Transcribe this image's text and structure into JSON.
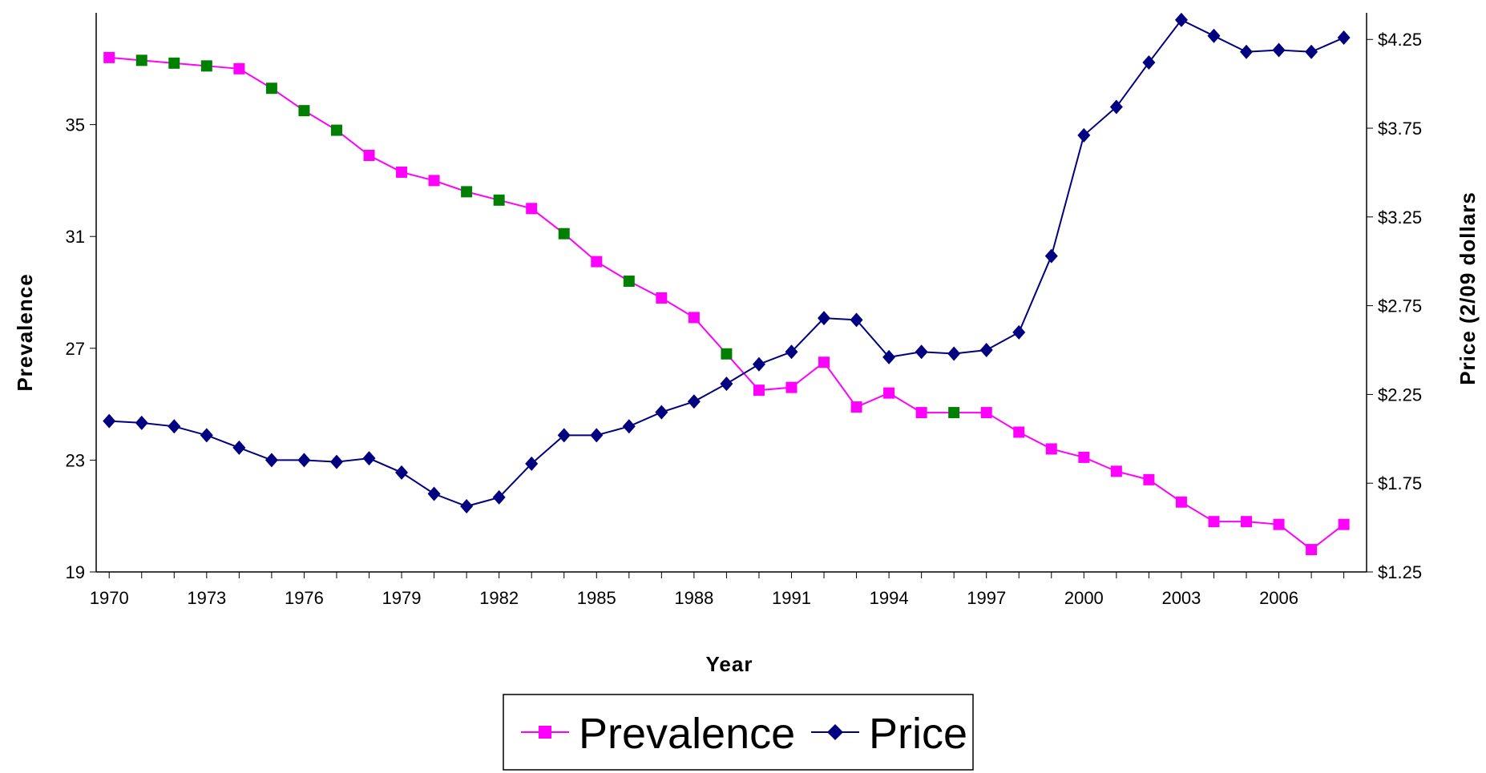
{
  "chart_data": {
    "type": "line",
    "x": [
      1970,
      1971,
      1972,
      1973,
      1974,
      1975,
      1976,
      1977,
      1978,
      1979,
      1980,
      1981,
      1982,
      1983,
      1984,
      1985,
      1986,
      1987,
      1988,
      1989,
      1990,
      1991,
      1992,
      1993,
      1994,
      1995,
      1996,
      1997,
      1998,
      1999,
      2000,
      2001,
      2002,
      2003,
      2004,
      2005,
      2006,
      2007,
      2008
    ],
    "x_tick_labels": [
      "1970",
      "1973",
      "1976",
      "1979",
      "1982",
      "1985",
      "1988",
      "1991",
      "1994",
      "1997",
      "2000",
      "2003",
      "2006"
    ],
    "x_ticks": [
      1970,
      1973,
      1976,
      1979,
      1982,
      1985,
      1988,
      1991,
      1994,
      1997,
      2000,
      2003,
      2006
    ],
    "xlabel": "Year",
    "ylabel_left": "Prevalence",
    "ylabel_right": "Price (2/09 dollars",
    "ylim_left": [
      19,
      39
    ],
    "yticks_left": [
      19,
      23,
      27,
      31,
      35
    ],
    "ytick_labels_left": [
      "19",
      "23",
      "27",
      "31",
      "35"
    ],
    "ylim_right": [
      1.25,
      4.4
    ],
    "yticks_right": [
      1.25,
      1.75,
      2.25,
      2.75,
      3.25,
      3.75,
      4.25
    ],
    "ytick_labels_right": [
      "$1.25",
      "$1.75",
      "$2.25",
      "$2.75",
      "$3.25",
      "$3.75",
      "$4.25"
    ],
    "grid": false,
    "legend_position": "bottom-center",
    "series": [
      {
        "name": "Prevalence",
        "axis": "left",
        "color": "#ff00ff",
        "highlight_color": "#008000",
        "marker": "square",
        "values": [
          37.4,
          37.3,
          37.2,
          37.1,
          37.0,
          36.3,
          35.5,
          34.8,
          33.9,
          33.3,
          33.0,
          32.6,
          32.3,
          32.0,
          31.1,
          30.1,
          29.4,
          28.8,
          28.1,
          26.8,
          25.5,
          25.6,
          26.5,
          24.9,
          25.4,
          24.7,
          24.7,
          24.7,
          24.0,
          23.4,
          23.1,
          22.6,
          22.3,
          21.5,
          20.8,
          20.8,
          20.7,
          19.8,
          20.7
        ],
        "highlight_years": [
          1971,
          1972,
          1973,
          1975,
          1976,
          1977,
          1981,
          1982,
          1984,
          1986,
          1989,
          1996
        ]
      },
      {
        "name": "Price",
        "axis": "right",
        "color": "#000080",
        "marker": "diamond",
        "values": [
          2.1,
          2.09,
          2.07,
          2.02,
          1.95,
          1.88,
          1.88,
          1.87,
          1.89,
          1.81,
          1.69,
          1.62,
          1.67,
          1.86,
          2.02,
          2.02,
          2.07,
          2.15,
          2.21,
          2.31,
          2.42,
          2.49,
          2.68,
          2.67,
          2.46,
          2.49,
          2.48,
          2.5,
          2.6,
          3.03,
          3.71,
          3.87,
          4.12,
          4.36,
          4.27,
          4.18,
          4.19,
          4.18,
          4.26
        ]
      }
    ]
  }
}
